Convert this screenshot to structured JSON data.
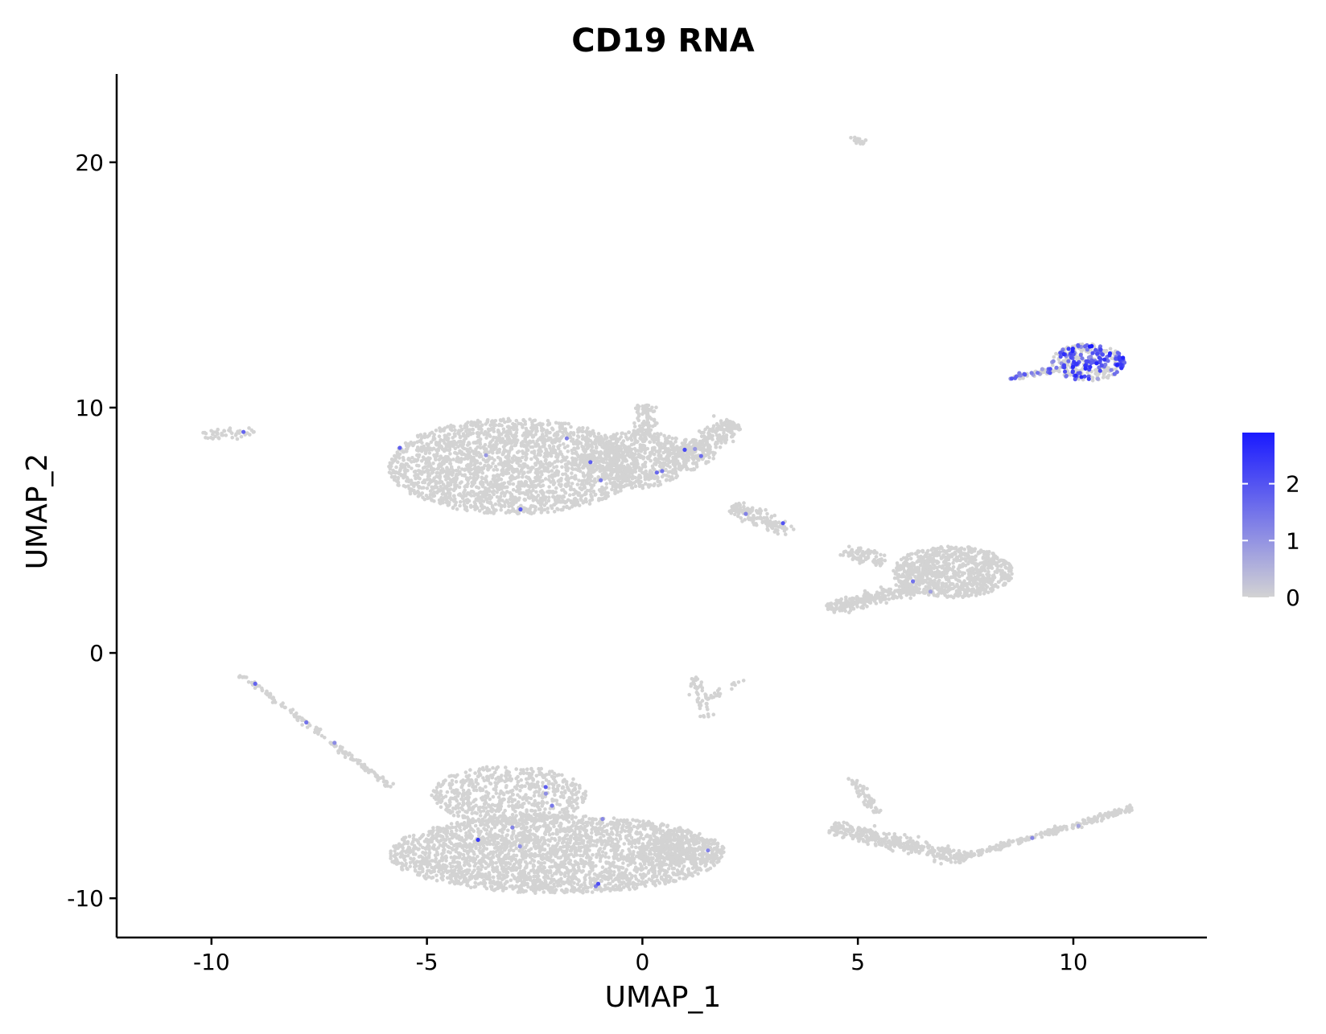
{
  "chart_data": {
    "type": "scatter",
    "title": "CD19 RNA",
    "xlabel": "UMAP_1",
    "ylabel": "UMAP_2",
    "xlim": [
      -12.2,
      13.1
    ],
    "ylim": [
      -11.6,
      23.6
    ],
    "x_ticks": [
      -10,
      -5,
      0,
      5,
      10
    ],
    "x_tick_labels": [
      "-10",
      "-5",
      "0",
      "5",
      "10"
    ],
    "y_ticks": [
      -10,
      0,
      10,
      20
    ],
    "y_tick_labels": [
      "-10",
      "0",
      "10",
      "20"
    ],
    "grid": false,
    "legend": {
      "type": "colorbar",
      "placement": "right",
      "ticks": [
        0,
        1,
        2
      ],
      "tick_labels": [
        "0",
        "1",
        "2"
      ],
      "range": [
        0,
        2.9
      ],
      "low_color": "#d3d3d3",
      "high_color": "#1a1aff"
    },
    "colors": {
      "low": "#d3d3d3",
      "high": "#1a1aff"
    },
    "clusters": [
      {
        "name": "tiny-top",
        "shape": "ellipse",
        "cx": 5.0,
        "cy": 20.9,
        "rx": 0.2,
        "ry": 0.2,
        "n": 18,
        "expr_count": 0,
        "expr_level": 0
      },
      {
        "name": "b-cells-main",
        "shape": "ellipse",
        "cx": 10.35,
        "cy": 11.85,
        "rx": 0.85,
        "ry": 0.75,
        "n": 200,
        "expr_count": 130,
        "expr_level": 1.9
      },
      {
        "name": "b-cells-tail",
        "shape": "segment",
        "x1": 8.5,
        "y1": 11.2,
        "x2": 9.6,
        "y2": 11.55,
        "w": 0.12,
        "n": 40,
        "expr_count": 18,
        "expr_level": 1.4
      },
      {
        "name": "upper-left-main",
        "shape": "ellipse",
        "cx": -3.0,
        "cy": 7.6,
        "rx": 2.9,
        "ry": 1.95,
        "n": 2200,
        "expr_count": 5,
        "expr_level": 1.6
      },
      {
        "name": "upper-left-mid",
        "shape": "ellipse",
        "cx": -0.2,
        "cy": 7.9,
        "rx": 1.3,
        "ry": 1.2,
        "n": 500,
        "expr_count": 4,
        "expr_level": 1.6
      },
      {
        "name": "upper-left-right",
        "shape": "ellipse",
        "cx": 0.9,
        "cy": 8.1,
        "rx": 0.8,
        "ry": 0.7,
        "n": 160,
        "expr_count": 1,
        "expr_level": 1.6
      },
      {
        "name": "upper-left-arm",
        "shape": "segment",
        "x1": 1.0,
        "y1": 8.0,
        "x2": 2.1,
        "y2": 9.4,
        "w": 0.35,
        "n": 220,
        "expr_count": 1,
        "expr_level": 1.5
      },
      {
        "name": "upper-left-spur",
        "shape": "segment",
        "x1": 0.0,
        "y1": 8.6,
        "x2": 0.1,
        "y2": 10.1,
        "w": 0.25,
        "n": 110,
        "expr_count": 0,
        "expr_level": 0
      },
      {
        "name": "far-left",
        "shape": "segment",
        "x1": -10.2,
        "y1": 8.8,
        "x2": -9.0,
        "y2": 9.1,
        "w": 0.25,
        "n": 45,
        "expr_count": 1,
        "expr_level": 1.2
      },
      {
        "name": "mid-small",
        "shape": "segment",
        "x1": 2.1,
        "y1": 6.0,
        "x2": 3.4,
        "y2": 4.9,
        "w": 0.3,
        "n": 130,
        "expr_count": 2,
        "expr_level": 1.5
      },
      {
        "name": "mid-right-main",
        "shape": "ellipse",
        "cx": 7.2,
        "cy": 3.3,
        "rx": 1.4,
        "ry": 1.05,
        "n": 900,
        "expr_count": 2,
        "expr_level": 1.6
      },
      {
        "name": "mid-right-tail",
        "shape": "segment",
        "x1": 4.3,
        "y1": 1.8,
        "x2": 6.3,
        "y2": 2.6,
        "w": 0.25,
        "n": 260,
        "expr_count": 0,
        "expr_level": 0
      },
      {
        "name": "mid-right-spur",
        "shape": "segment",
        "x1": 4.7,
        "y1": 4.2,
        "x2": 5.6,
        "y2": 3.7,
        "w": 0.3,
        "n": 90,
        "expr_count": 0,
        "expr_level": 0
      },
      {
        "name": "lower-left-diagonal",
        "shape": "segment",
        "x1": -9.3,
        "y1": -0.9,
        "x2": -5.8,
        "y2": -5.5,
        "w": 0.1,
        "n": 150,
        "expr_count": 3,
        "expr_level": 1.2
      },
      {
        "name": "lower-main",
        "shape": "ellipse",
        "cx": -2.0,
        "cy": -8.2,
        "rx": 3.9,
        "ry": 1.6,
        "n": 2600,
        "expr_count": 6,
        "expr_level": 1.6
      },
      {
        "name": "lower-main-top",
        "shape": "ellipse",
        "cx": -3.1,
        "cy": -5.8,
        "rx": 1.8,
        "ry": 1.2,
        "n": 650,
        "expr_count": 3,
        "expr_level": 1.6
      },
      {
        "name": "lower-main-right",
        "shape": "ellipse",
        "cx": 0.9,
        "cy": -8.0,
        "rx": 1.0,
        "ry": 0.6,
        "n": 250,
        "expr_count": 1,
        "expr_level": 1.6
      },
      {
        "name": "cross-small",
        "shape": "segment",
        "x1": 1.2,
        "y1": -1.0,
        "x2": 1.5,
        "y2": -2.6,
        "w": 0.15,
        "n": 45,
        "expr_count": 0,
        "expr_level": 0
      },
      {
        "name": "cross-arm",
        "shape": "segment",
        "x1": 1.5,
        "y1": -1.9,
        "x2": 2.4,
        "y2": -1.0,
        "w": 0.1,
        "n": 25,
        "expr_count": 0,
        "expr_level": 0
      },
      {
        "name": "lower-right-hook",
        "shape": "segment",
        "x1": 4.8,
        "y1": -5.1,
        "x2": 5.5,
        "y2": -6.5,
        "w": 0.15,
        "n": 60,
        "expr_count": 0,
        "expr_level": 0
      },
      {
        "name": "lower-right-curve",
        "shape": "segment",
        "x1": 4.4,
        "y1": -7.1,
        "x2": 7.5,
        "y2": -8.4,
        "w": 0.3,
        "n": 380,
        "expr_count": 0,
        "expr_level": 0
      },
      {
        "name": "lower-right-streak",
        "shape": "segment",
        "x1": 7.5,
        "y1": -8.3,
        "x2": 11.4,
        "y2": -6.3,
        "w": 0.12,
        "n": 220,
        "expr_count": 2,
        "expr_level": 1.1
      }
    ]
  }
}
